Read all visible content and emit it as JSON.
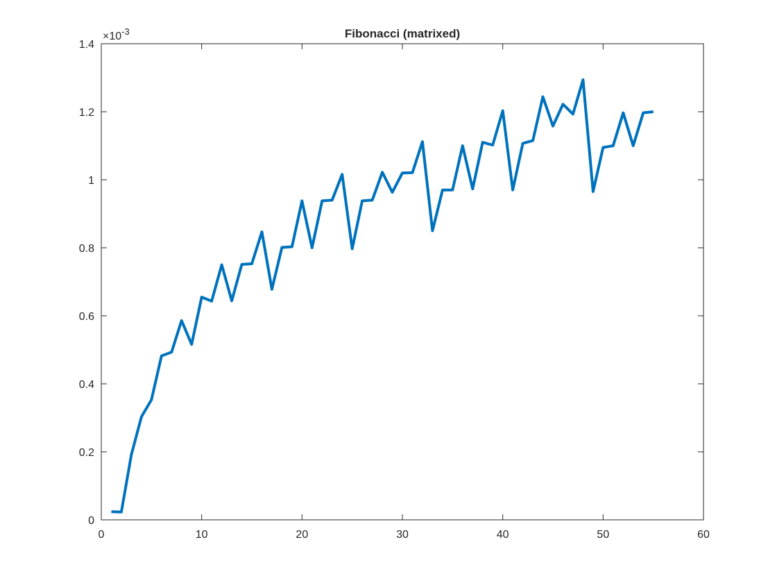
{
  "chart_data": {
    "type": "line",
    "title": "Fibonacci (matrixed)",
    "xlabel": "",
    "ylabel": "",
    "xlim": [
      0,
      60
    ],
    "ylim": [
      0,
      0.0014
    ],
    "y_exponent_label": "×10",
    "y_exponent_power": "-3",
    "xticks": [
      0,
      10,
      20,
      30,
      40,
      50,
      60
    ],
    "xtick_labels": [
      "0",
      "10",
      "20",
      "30",
      "40",
      "50",
      "60"
    ],
    "yticks": [
      0,
      0.0002,
      0.0004,
      0.0006,
      0.0008,
      0.001,
      0.0012,
      0.0014
    ],
    "ytick_labels": [
      "0",
      "0.2",
      "0.4",
      "0.6",
      "0.8",
      "1",
      "1.2",
      "1.4"
    ],
    "grid": false,
    "series": [
      {
        "color": "#0072BD",
        "x": [
          1,
          2,
          3,
          4,
          5,
          6,
          7,
          8,
          9,
          10,
          11,
          12,
          13,
          14,
          15,
          16,
          17,
          18,
          19,
          20,
          21,
          22,
          23,
          24,
          25,
          26,
          27,
          28,
          29,
          30,
          31,
          32,
          33,
          34,
          35,
          36,
          37,
          38,
          39,
          40,
          41,
          42,
          43,
          44,
          45,
          46,
          47,
          48,
          49,
          50,
          51,
          52,
          53,
          54,
          55
        ],
        "y": [
          2.4e-05,
          2.3e-05,
          0.000192,
          0.000303,
          0.000353,
          0.000482,
          0.000493,
          0.000586,
          0.000516,
          0.000655,
          0.000643,
          0.00075,
          0.000644,
          0.000751,
          0.000753,
          0.000847,
          0.000678,
          0.000801,
          0.000803,
          0.000938,
          0.0008,
          0.000938,
          0.00094,
          0.001016,
          0.000797,
          0.000938,
          0.00094,
          0.001022,
          0.000963,
          0.00102,
          0.001021,
          0.001112,
          0.00085,
          0.00097,
          0.00097,
          0.0011,
          0.000973,
          0.00111,
          0.001102,
          0.001203,
          0.00097,
          0.001107,
          0.001115,
          0.001244,
          0.001158,
          0.001222,
          0.001193,
          0.001294,
          0.000965,
          0.001095,
          0.0011,
          0.001197,
          0.0011,
          0.001197,
          0.0012
        ]
      }
    ]
  }
}
